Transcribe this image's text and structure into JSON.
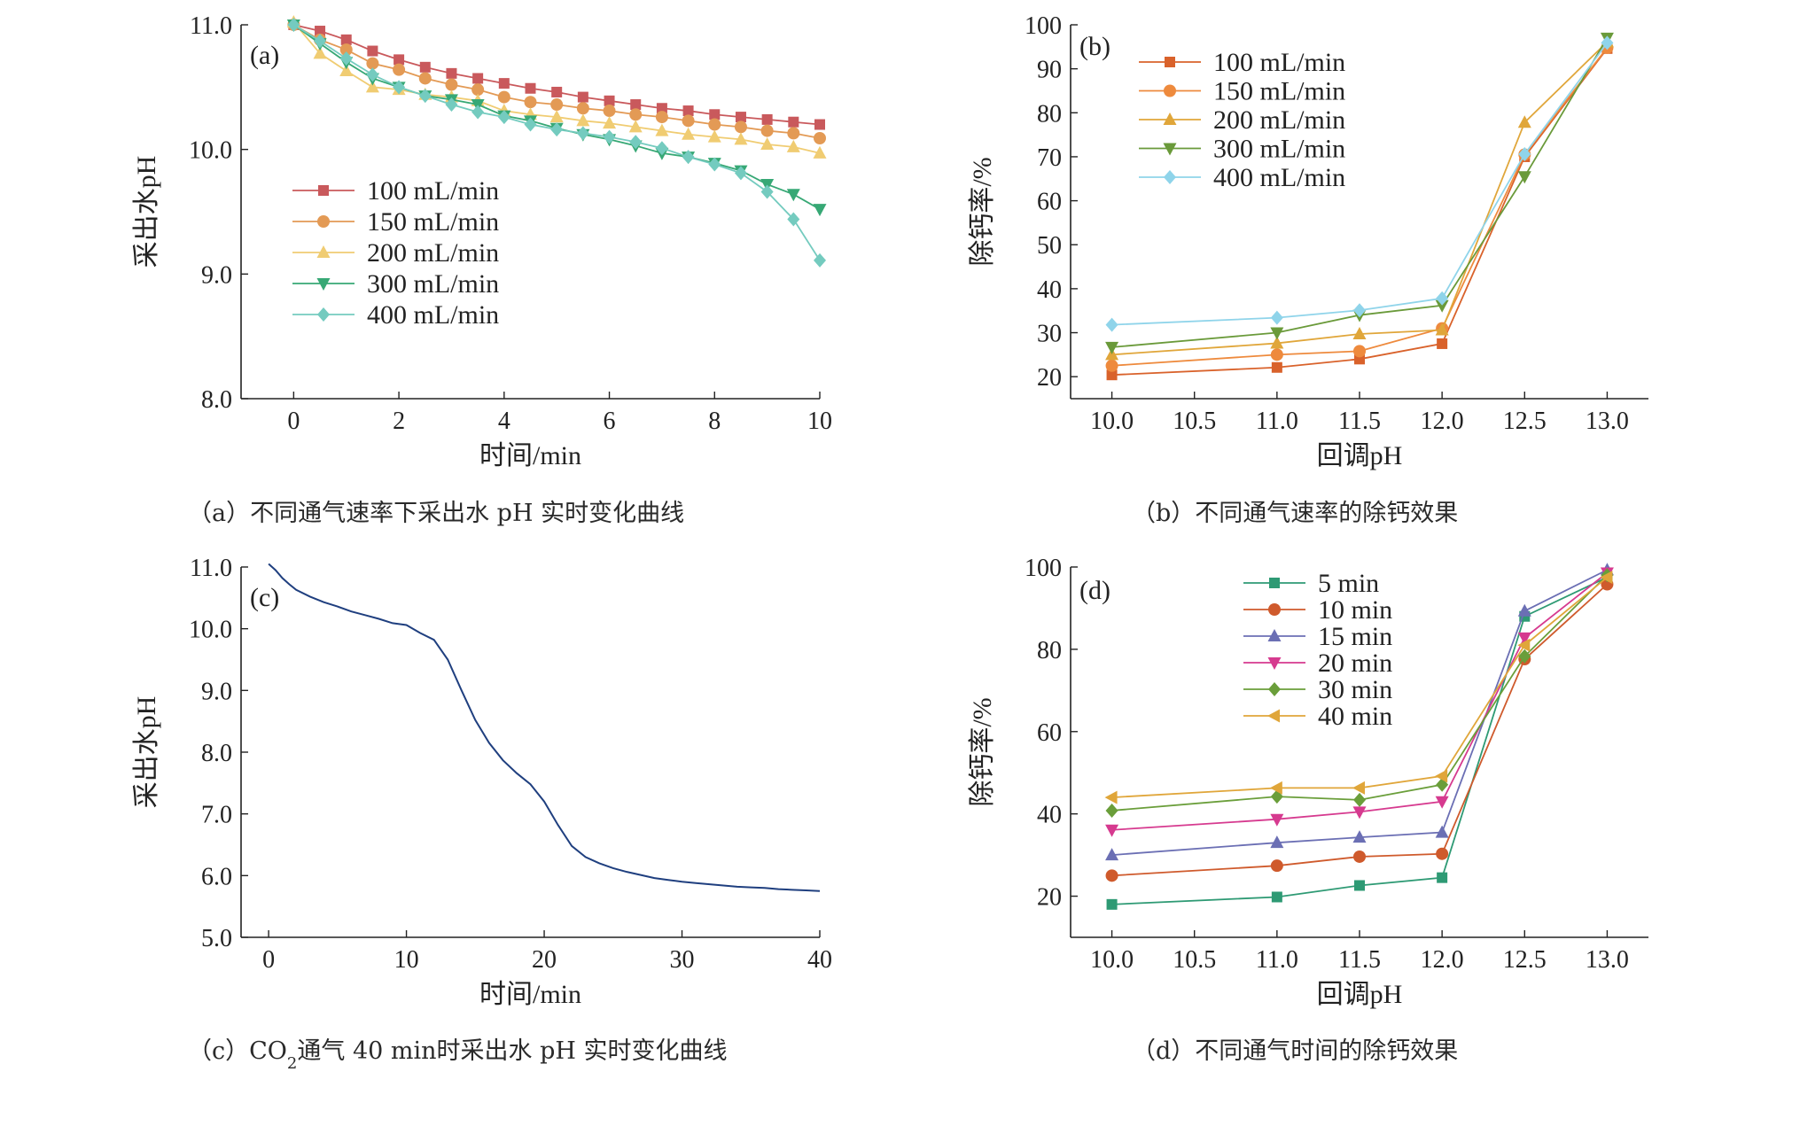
{
  "chart_data": [
    {
      "id": "a",
      "type": "line",
      "panel_label": "(a)",
      "xlabel": "时间/min",
      "ylabel": "采出水pH",
      "xlim": [
        -1,
        10
      ],
      "ylim": [
        8.0,
        11.0
      ],
      "xticks": [
        "0",
        "2",
        "4",
        "6",
        "8",
        "10"
      ],
      "yticks": [
        "8.0",
        "9.0",
        "10.0",
        "11.0"
      ],
      "legend_position": "center-left",
      "x": [
        0,
        0.5,
        1,
        1.5,
        2,
        2.5,
        3,
        3.5,
        4,
        4.5,
        5,
        5.5,
        6,
        6.5,
        7,
        7.5,
        8,
        8.5,
        9,
        9.5,
        10
      ],
      "series": [
        {
          "name": "100 mL/min",
          "color": "#c9595c",
          "marker": "square",
          "values": [
            11.0,
            10.95,
            10.88,
            10.79,
            10.72,
            10.66,
            10.61,
            10.57,
            10.53,
            10.49,
            10.46,
            10.42,
            10.39,
            10.36,
            10.33,
            10.31,
            10.28,
            10.26,
            10.24,
            10.22,
            10.2
          ]
        },
        {
          "name": "150 mL/min",
          "color": "#e39a55",
          "marker": "circle",
          "values": [
            11.0,
            10.88,
            10.8,
            10.69,
            10.64,
            10.57,
            10.52,
            10.48,
            10.42,
            10.38,
            10.36,
            10.33,
            10.31,
            10.28,
            10.26,
            10.23,
            10.2,
            10.18,
            10.15,
            10.13,
            10.09
          ]
        },
        {
          "name": "200 mL/min",
          "color": "#f0cc72",
          "marker": "triangle-up",
          "values": [
            11.02,
            10.77,
            10.63,
            10.5,
            10.48,
            10.44,
            10.42,
            10.39,
            10.31,
            10.28,
            10.26,
            10.23,
            10.21,
            10.18,
            10.15,
            10.12,
            10.1,
            10.08,
            10.04,
            10.02,
            9.97
          ]
        },
        {
          "name": "300 mL/min",
          "color": "#37a875",
          "marker": "triangle-down",
          "values": [
            11.0,
            10.85,
            10.7,
            10.57,
            10.5,
            10.43,
            10.4,
            10.36,
            10.27,
            10.23,
            10.17,
            10.12,
            10.08,
            10.03,
            9.97,
            9.94,
            9.89,
            9.83,
            9.72,
            9.64,
            9.52
          ]
        },
        {
          "name": "400 mL/min",
          "color": "#74cbbf",
          "marker": "diamond",
          "values": [
            11.0,
            10.87,
            10.73,
            10.6,
            10.5,
            10.43,
            10.36,
            10.3,
            10.26,
            10.2,
            10.16,
            10.13,
            10.1,
            10.06,
            10.01,
            9.94,
            9.88,
            9.81,
            9.66,
            9.44,
            9.11
          ]
        }
      ]
    },
    {
      "id": "b",
      "type": "line",
      "panel_label": "(b)",
      "xlabel": "回调pH",
      "ylabel": "除钙率/%",
      "xlim": [
        9.75,
        13.25
      ],
      "ylim": [
        15,
        100
      ],
      "xticks": [
        "10.0",
        "10.5",
        "11.0",
        "11.5",
        "12.0",
        "12.5",
        "13.0"
      ],
      "yticks": [
        "20",
        "30",
        "40",
        "50",
        "60",
        "70",
        "80",
        "90",
        "100"
      ],
      "legend_position": "top-left",
      "x": [
        10.0,
        11.0,
        11.5,
        12.0,
        12.5,
        13.0
      ],
      "series": [
        {
          "name": "100 mL/min",
          "color": "#d9622b",
          "marker": "square",
          "values": [
            20.4,
            22.1,
            24.0,
            27.5,
            70.0,
            94.6
          ]
        },
        {
          "name": "150 mL/min",
          "color": "#ee8a3d",
          "marker": "circle",
          "values": [
            22.5,
            25.0,
            25.8,
            31.0,
            70.5,
            94.8
          ]
        },
        {
          "name": "200 mL/min",
          "color": "#e0a63a",
          "marker": "triangle-up",
          "values": [
            25.0,
            27.6,
            29.7,
            30.6,
            77.8,
            96.1
          ]
        },
        {
          "name": "300 mL/min",
          "color": "#6a9a3a",
          "marker": "triangle-down",
          "values": [
            26.7,
            30.0,
            34.0,
            36.2,
            65.5,
            97.0
          ]
        },
        {
          "name": "400 mL/min",
          "color": "#8fd4ea",
          "marker": "diamond",
          "values": [
            31.8,
            33.4,
            35.1,
            37.8,
            70.6,
            95.9
          ]
        }
      ]
    },
    {
      "id": "c",
      "type": "line",
      "panel_label": "(c)",
      "xlabel": "时间/min",
      "ylabel": "采出水pH",
      "xlim": [
        -2,
        40
      ],
      "ylim": [
        5.0,
        11.0
      ],
      "xticks": [
        "0",
        "10",
        "20",
        "30",
        "40"
      ],
      "yticks": [
        "5.0",
        "6.0",
        "7.0",
        "8.0",
        "9.0",
        "10.0",
        "11.0"
      ],
      "x": [
        0,
        0.5,
        1,
        1.5,
        2,
        3,
        4,
        5,
        6,
        7,
        8,
        9,
        10,
        11,
        12,
        13,
        14,
        15,
        16,
        17,
        18,
        19,
        20,
        21,
        22,
        23,
        24,
        25,
        26,
        27,
        28,
        29,
        30,
        31,
        32,
        33,
        34,
        35,
        36,
        37,
        38,
        39,
        40
      ],
      "series": [
        {
          "color": "#1f3f7f",
          "values": [
            11.05,
            10.95,
            10.82,
            10.72,
            10.63,
            10.52,
            10.43,
            10.36,
            10.28,
            10.22,
            10.16,
            10.09,
            10.06,
            9.93,
            9.82,
            9.5,
            9.0,
            8.52,
            8.15,
            7.87,
            7.66,
            7.48,
            7.2,
            6.82,
            6.48,
            6.3,
            6.2,
            6.12,
            6.06,
            6.01,
            5.96,
            5.93,
            5.9,
            5.88,
            5.86,
            5.84,
            5.82,
            5.81,
            5.8,
            5.78,
            5.77,
            5.76,
            5.75
          ]
        }
      ]
    },
    {
      "id": "d",
      "type": "line",
      "panel_label": "(d)",
      "xlabel": "回调pH",
      "ylabel": "除钙率/%",
      "xlim": [
        9.75,
        13.25
      ],
      "ylim": [
        10,
        100
      ],
      "xticks": [
        "10.0",
        "10.5",
        "11.0",
        "11.5",
        "12.0",
        "12.5",
        "13.0"
      ],
      "yticks": [
        "20",
        "40",
        "60",
        "80",
        "100"
      ],
      "legend_position": "top-center",
      "x": [
        10.0,
        11.0,
        11.5,
        12.0,
        12.5,
        13.0
      ],
      "series": [
        {
          "name": "5 min",
          "color": "#2e9a74",
          "marker": "square",
          "values": [
            18.0,
            19.8,
            22.6,
            24.5,
            88.0,
            97.5
          ]
        },
        {
          "name": "10 min",
          "color": "#cf5a2c",
          "marker": "circle",
          "values": [
            25.0,
            27.4,
            29.6,
            30.3,
            77.6,
            95.8
          ]
        },
        {
          "name": "15 min",
          "color": "#6b6fb4",
          "marker": "triangle-up",
          "values": [
            30.0,
            33.0,
            34.3,
            35.5,
            89.3,
            99.3
          ]
        },
        {
          "name": "20 min",
          "color": "#d63a8f",
          "marker": "triangle-down",
          "values": [
            36.1,
            38.7,
            40.5,
            43.0,
            82.8,
            98.6
          ]
        },
        {
          "name": "30 min",
          "color": "#6a9e3a",
          "marker": "diamond",
          "values": [
            40.8,
            44.2,
            43.4,
            47.1,
            78.3,
            98.0
          ]
        },
        {
          "name": "40 min",
          "color": "#e0a63a",
          "marker": "triangle-left",
          "values": [
            44.0,
            46.3,
            46.3,
            49.2,
            81.0,
            97.5
          ]
        }
      ]
    }
  ],
  "captions": {
    "a": "（a）不同通气速率下采出水 pH 实时变化曲线",
    "b": "（b）不同通气速率的除钙效果",
    "c_before": "（c）CO",
    "c_sub": "2",
    "c_after": "通气 40 min时采出水 pH 实时变化曲线",
    "d": "（d）不同通气时间的除钙效果"
  },
  "colors": {
    "axis": "#222222"
  }
}
